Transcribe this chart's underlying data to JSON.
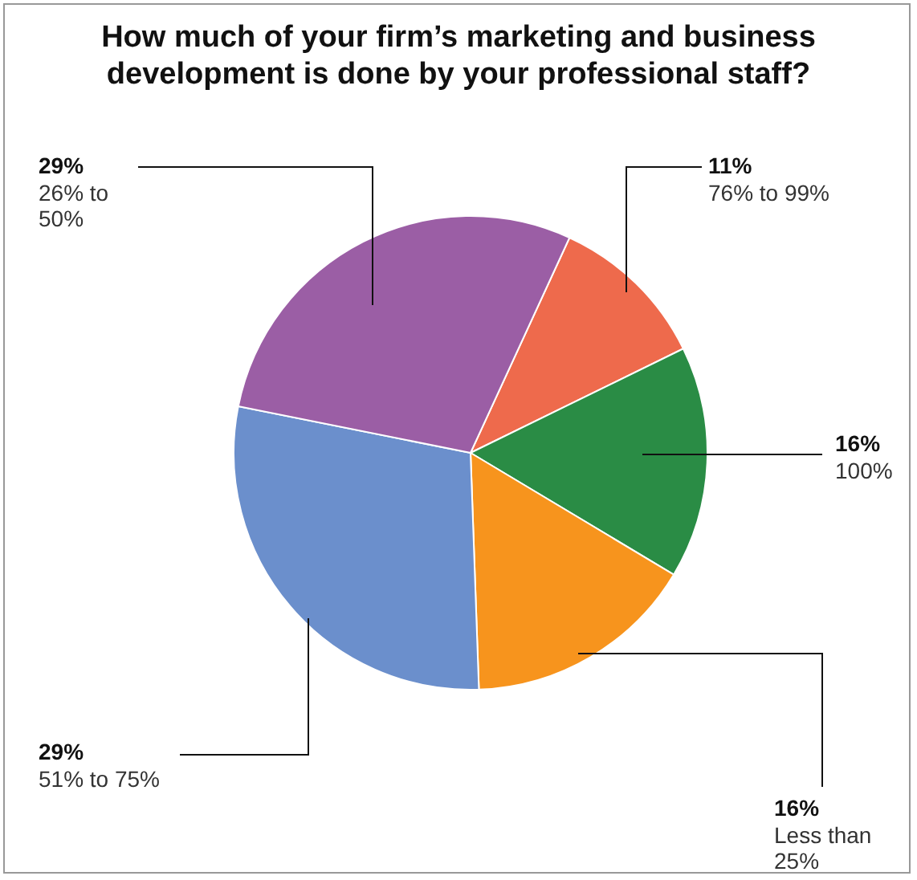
{
  "chart_data": {
    "type": "pie",
    "title": "How much of your firm’s marketing and business development is done by your professional staff?",
    "categories": [
      "76% to 99%",
      "100%",
      "Less than 25%",
      "51% to 75%",
      "26% to 50%"
    ],
    "values": [
      11,
      16,
      16,
      29,
      29
    ],
    "value_labels": [
      "11%",
      "16%",
      "16%",
      "29%",
      "29%"
    ],
    "colors": [
      "#ee6a4c",
      "#2a8c45",
      "#f7941d",
      "#6b8fcc",
      "#9b5ea5"
    ],
    "legend": false
  }
}
